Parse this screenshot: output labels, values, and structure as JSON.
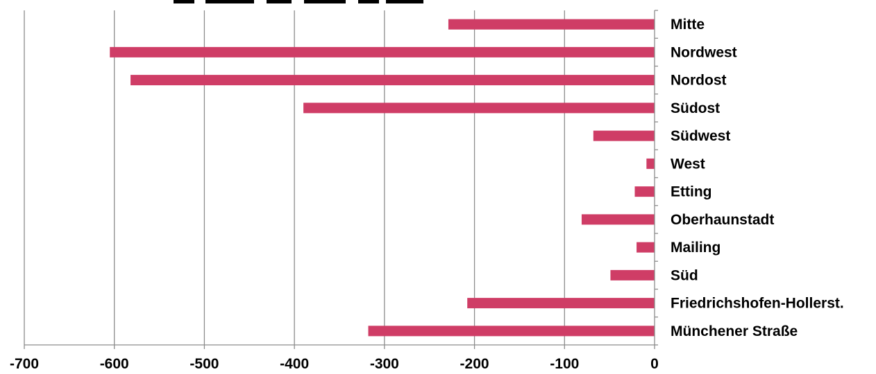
{
  "chart_data": {
    "type": "bar",
    "orientation": "horizontal",
    "categories": [
      "Mitte",
      "Nordwest",
      "Nordost",
      "Südost",
      "Südwest",
      "West",
      "Etting",
      "Oberhaunstadt",
      "Mailing",
      "Süd",
      "Friedrichshofen-Hollerst.",
      "Münchener Straße"
    ],
    "values": [
      -229,
      -605,
      -582,
      -390,
      -68,
      -9,
      -22,
      -81,
      -20,
      -49,
      -208,
      -318
    ],
    "xlim": [
      -700,
      0
    ],
    "xticks": [
      -700,
      -600,
      -500,
      -400,
      -300,
      -200,
      -100,
      0
    ],
    "xtick_labels": [
      "-700",
      "-600",
      "-500",
      "-400",
      "-300",
      "-200",
      "-100",
      "0"
    ],
    "grid": "vertical",
    "category_axis_side": "right",
    "bar_color": "#cf3d66",
    "grid_color": "#8c8c8c",
    "axis_color": "#8c8c8c",
    "legend": "none"
  }
}
